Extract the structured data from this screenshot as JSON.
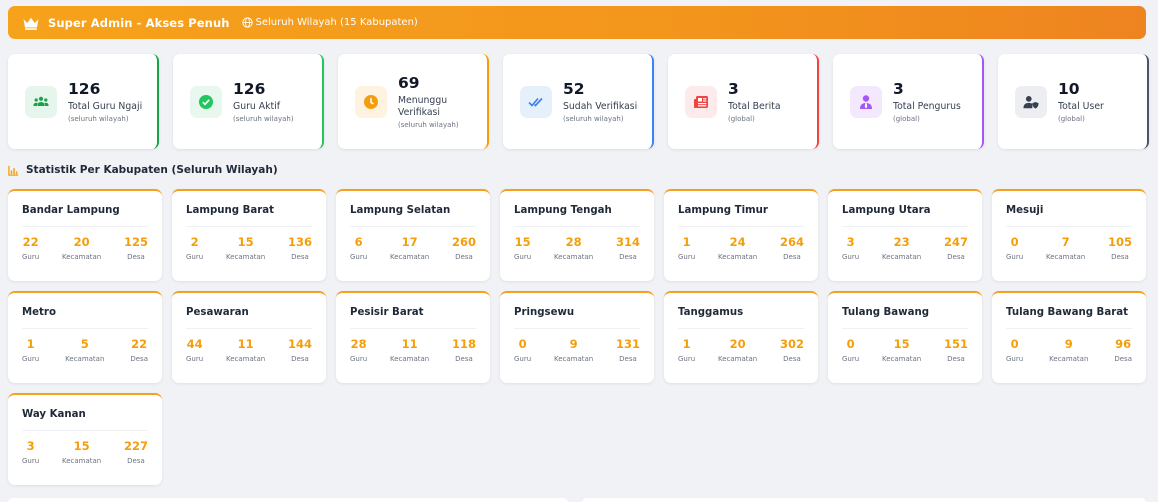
{
  "banner": {
    "title": "Super Admin - Akses Penuh",
    "scope": "Seluruh Wilayah (15 Kabupaten)",
    "icon": "crown-icon",
    "scope_icon": "globe-icon",
    "gradient": [
      "#f6a21b",
      "#ee8420"
    ]
  },
  "stats": [
    {
      "value": "126",
      "label": "Total Guru Ngaji",
      "sub": "(seluruh wilayah)",
      "icon": "users-icon",
      "color": "#16a34a",
      "bg": "#e7f6ec",
      "border": "#16a34a"
    },
    {
      "value": "126",
      "label": "Guru Aktif",
      "sub": "(seluruh wilayah)",
      "icon": "check-circle-icon",
      "color": "#22c55e",
      "bg": "#e8f8ee",
      "border": "#22c55e"
    },
    {
      "value": "69",
      "label": "Menunggu Verifikasi",
      "sub": "(seluruh wilayah)",
      "icon": "clock-icon",
      "color": "#f59e0b",
      "bg": "#fef3e0",
      "border": "#f59e0b"
    },
    {
      "value": "52",
      "label": "Sudah Verifikasi",
      "sub": "(seluruh wilayah)",
      "icon": "double-check-icon",
      "color": "#3b82f6",
      "bg": "#e6f0fb",
      "border": "#3b82f6"
    },
    {
      "value": "3",
      "label": "Total Berita",
      "sub": "(global)",
      "icon": "newspaper-icon",
      "color": "#ef4444",
      "bg": "#fdeaea",
      "border": "#ef4444"
    },
    {
      "value": "3",
      "label": "Total Pengurus",
      "sub": "(global)",
      "icon": "user-tie-icon",
      "color": "#a855f7",
      "bg": "#f3e8fd",
      "border": "#a855f7"
    },
    {
      "value": "10",
      "label": "Total User",
      "sub": "(global)",
      "icon": "user-shield-icon",
      "color": "#374151",
      "bg": "#eceef1",
      "border": "#4b5563"
    }
  ],
  "section": {
    "title": "Statistik Per Kabupaten (Seluruh Wilayah)",
    "icon": "chart-icon"
  },
  "labels": {
    "guru": "Guru",
    "kecamatan": "Kecamatan",
    "desa": "Desa"
  },
  "kabupaten": [
    {
      "name": "Bandar Lampung",
      "guru": "22",
      "kecamatan": "20",
      "desa": "125"
    },
    {
      "name": "Lampung Barat",
      "guru": "2",
      "kecamatan": "15",
      "desa": "136"
    },
    {
      "name": "Lampung Selatan",
      "guru": "6",
      "kecamatan": "17",
      "desa": "260"
    },
    {
      "name": "Lampung Tengah",
      "guru": "15",
      "kecamatan": "28",
      "desa": "314"
    },
    {
      "name": "Lampung Timur",
      "guru": "1",
      "kecamatan": "24",
      "desa": "264"
    },
    {
      "name": "Lampung Utara",
      "guru": "3",
      "kecamatan": "23",
      "desa": "247"
    },
    {
      "name": "Mesuji",
      "guru": "0",
      "kecamatan": "7",
      "desa": "105"
    },
    {
      "name": "Metro",
      "guru": "1",
      "kecamatan": "5",
      "desa": "22"
    },
    {
      "name": "Pesawaran",
      "guru": "44",
      "kecamatan": "11",
      "desa": "144"
    },
    {
      "name": "Pesisir Barat",
      "guru": "28",
      "kecamatan": "11",
      "desa": "118"
    },
    {
      "name": "Pringsewu",
      "guru": "0",
      "kecamatan": "9",
      "desa": "131"
    },
    {
      "name": "Tanggamus",
      "guru": "1",
      "kecamatan": "20",
      "desa": "302"
    },
    {
      "name": "Tulang Bawang",
      "guru": "0",
      "kecamatan": "15",
      "desa": "151"
    },
    {
      "name": "Tulang Bawang Barat",
      "guru": "0",
      "kecamatan": "9",
      "desa": "96"
    },
    {
      "name": "Way Kanan",
      "guru": "3",
      "kecamatan": "15",
      "desa": "227"
    }
  ]
}
